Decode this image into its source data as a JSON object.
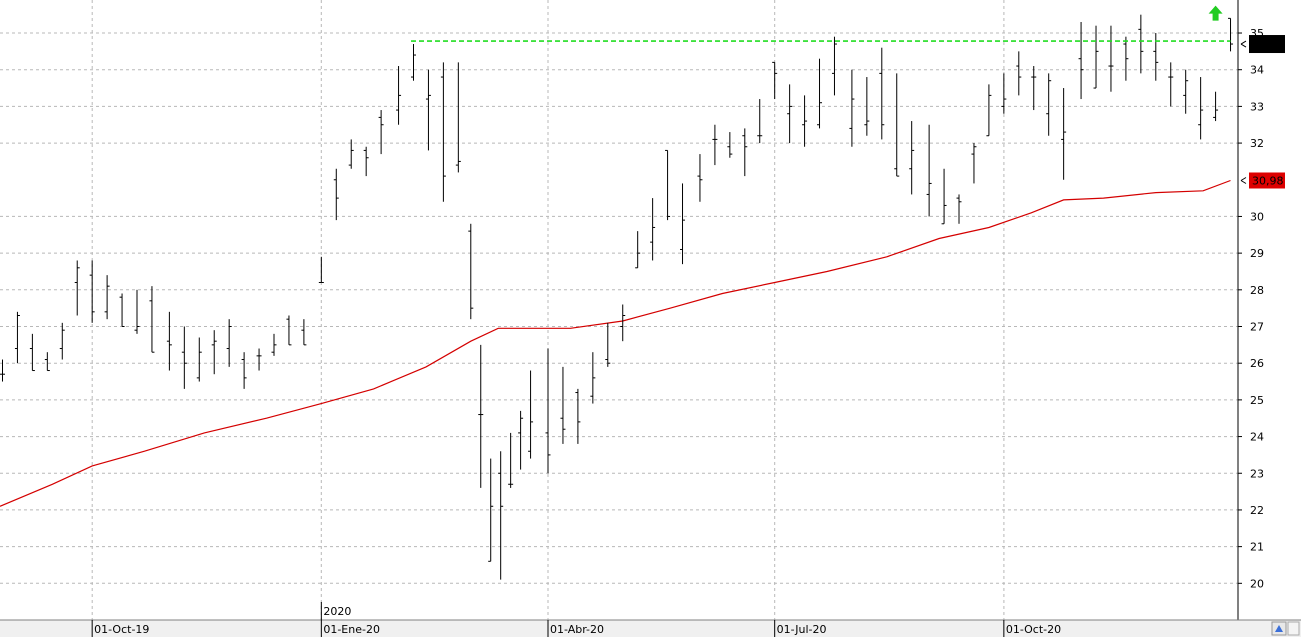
{
  "chart_data": {
    "type": "bar",
    "subtype": "ohlc-price-bars",
    "title": "",
    "xlabel": "",
    "ylabel": "",
    "ylim": [
      19.0,
      35.9
    ],
    "y_ticks": [
      20,
      21,
      22,
      23,
      24,
      25,
      26,
      27,
      28,
      29,
      30,
      32,
      33,
      34,
      35
    ],
    "y_tick_labels": [
      "20",
      "21",
      "22",
      "23",
      "24",
      "25",
      "26",
      "27",
      "28",
      "29",
      "30",
      "32",
      "33",
      "34",
      "35"
    ],
    "y_axis_position": "right",
    "x_axis": {
      "start_date": "2019-08-25",
      "date_ticks": [
        {
          "date": "2019-10-01",
          "label": "01-Oct-19"
        },
        {
          "date": "2020-01-01",
          "label": "01-Ene-20"
        },
        {
          "date": "2020-04-01",
          "label": "01-Abr-20"
        },
        {
          "date": "2020-07-01",
          "label": "01-Jul-20"
        },
        {
          "date": "2020-10-01",
          "label": "01-Oct-20"
        }
      ],
      "year_marker": {
        "date": "2020-01-01",
        "label": "2020"
      }
    },
    "grid": true,
    "series": [
      {
        "name": "",
        "kind": "price-bars",
        "color": "#000000",
        "x": [
          "2019-08-26",
          "2019-09-01",
          "2019-09-07",
          "2019-09-13",
          "2019-09-19",
          "2019-09-25",
          "2019-10-01",
          "2019-10-07",
          "2019-10-13",
          "2019-10-19",
          "2019-10-25",
          "2019-11-01",
          "2019-11-07",
          "2019-11-13",
          "2019-11-19",
          "2019-11-25",
          "2019-12-01",
          "2019-12-07",
          "2019-12-13",
          "2019-12-19",
          "2019-12-25",
          "2020-01-01",
          "2020-01-07",
          "2020-01-13",
          "2020-01-19",
          "2020-01-25",
          "2020-02-01",
          "2020-02-07",
          "2020-02-13",
          "2020-02-19",
          "2020-02-25",
          "2020-03-01",
          "2020-03-05",
          "2020-03-09",
          "2020-03-13",
          "2020-03-17",
          "2020-03-21",
          "2020-03-25",
          "2020-04-01",
          "2020-04-07",
          "2020-04-13",
          "2020-04-19",
          "2020-04-25",
          "2020-05-01",
          "2020-05-07",
          "2020-05-13",
          "2020-05-19",
          "2020-05-25",
          "2020-06-01",
          "2020-06-07",
          "2020-06-13",
          "2020-06-19",
          "2020-06-25",
          "2020-07-01",
          "2020-07-07",
          "2020-07-13",
          "2020-07-19",
          "2020-07-25",
          "2020-08-01",
          "2020-08-07",
          "2020-08-13",
          "2020-08-19",
          "2020-08-25",
          "2020-09-01",
          "2020-09-07",
          "2020-09-13",
          "2020-09-19",
          "2020-09-25",
          "2020-10-01",
          "2020-10-07",
          "2020-10-13",
          "2020-10-19",
          "2020-10-25",
          "2020-11-01",
          "2020-11-07",
          "2020-11-13",
          "2020-11-19",
          "2020-11-25",
          "2020-12-01",
          "2020-12-07",
          "2020-12-13",
          "2020-12-19",
          "2020-12-25",
          "2020-12-31"
        ],
        "high": [
          26.1,
          27.4,
          26.8,
          26.3,
          27.1,
          28.8,
          28.8,
          28.4,
          27.9,
          28.0,
          28.1,
          27.4,
          27.0,
          26.7,
          26.9,
          27.2,
          26.3,
          26.4,
          26.8,
          27.3,
          27.2,
          28.9,
          31.3,
          32.1,
          31.9,
          32.9,
          34.1,
          34.7,
          34.0,
          34.2,
          34.2,
          29.8,
          26.5,
          23.4,
          23.6,
          24.1,
          24.7,
          25.8,
          26.4,
          25.9,
          25.3,
          26.3,
          27.1,
          27.6,
          29.6,
          30.5,
          31.8,
          30.9,
          31.7,
          32.5,
          32.3,
          32.4,
          33.2,
          34.2,
          33.6,
          33.3,
          34.3,
          34.9,
          34.0,
          33.8,
          34.6,
          33.9,
          32.6,
          32.5,
          31.3,
          30.6,
          32.0,
          33.6,
          33.9,
          34.5,
          34.1,
          33.9,
          33.5,
          35.3,
          35.2,
          35.2,
          34.9,
          35.5,
          35.0,
          34.2,
          34.0,
          33.8,
          33.4,
          35.4
        ],
        "low": [
          25.5,
          26.0,
          25.8,
          25.8,
          26.1,
          27.3,
          27.1,
          27.2,
          27.0,
          26.8,
          26.3,
          25.8,
          25.3,
          25.5,
          25.7,
          25.9,
          25.3,
          25.8,
          26.2,
          26.5,
          26.5,
          28.2,
          29.9,
          31.3,
          31.1,
          31.7,
          32.5,
          33.7,
          31.8,
          30.4,
          31.2,
          27.2,
          22.6,
          20.6,
          20.1,
          22.6,
          23.1,
          23.4,
          23.0,
          23.8,
          23.8,
          24.9,
          25.9,
          26.6,
          28.6,
          28.8,
          29.9,
          28.7,
          30.4,
          31.4,
          31.6,
          31.1,
          32.0,
          33.2,
          32.0,
          31.9,
          32.4,
          33.3,
          31.9,
          32.2,
          32.1,
          31.1,
          30.6,
          30.0,
          29.8,
          29.8,
          30.9,
          32.2,
          32.8,
          33.3,
          32.9,
          32.2,
          31.0,
          33.2,
          33.5,
          33.4,
          33.7,
          33.9,
          33.7,
          33.0,
          32.8,
          32.1,
          32.6,
          34.5
        ],
        "open": [
          25.7,
          26.4,
          26.4,
          26.1,
          26.4,
          28.2,
          28.4,
          27.4,
          27.8,
          26.9,
          27.7,
          26.6,
          26.3,
          25.6,
          26.5,
          26.4,
          26.1,
          26.2,
          26.3,
          27.2,
          26.9,
          28.2,
          31.0,
          31.4,
          31.8,
          32.7,
          32.9,
          33.8,
          33.2,
          33.8,
          31.4,
          29.6,
          24.6,
          20.6,
          23.0,
          22.7,
          24.1,
          23.6,
          24.1,
          24.5,
          25.2,
          25.1,
          26.1,
          27.0,
          28.6,
          29.3,
          31.8,
          29.1,
          31.1,
          32.1,
          31.9,
          32.2,
          32.2,
          34.2,
          32.8,
          32.5,
          32.5,
          33.9,
          32.4,
          32.5,
          33.9,
          31.3,
          31.3,
          30.6,
          29.8,
          30.5,
          31.7,
          32.2,
          33.0,
          34.1,
          33.8,
          32.8,
          32.1,
          34.3,
          33.5,
          34.1,
          34.7,
          35.1,
          34.5,
          33.8,
          33.3,
          32.5,
          32.7,
          35.4
        ],
        "close": [
          25.7,
          27.3,
          25.8,
          25.8,
          26.9,
          28.6,
          27.4,
          28.1,
          27.0,
          27.0,
          26.3,
          26.5,
          26.0,
          26.3,
          26.6,
          27.0,
          25.6,
          26.2,
          26.5,
          26.5,
          26.5,
          28.2,
          30.5,
          31.8,
          31.6,
          32.5,
          33.3,
          34.4,
          33.3,
          31.1,
          31.5,
          27.5,
          24.6,
          22.1,
          22.1,
          22.7,
          24.5,
          24.4,
          23.5,
          24.2,
          24.4,
          25.6,
          26.0,
          27.3,
          29.0,
          29.7,
          30.0,
          29.9,
          31.0,
          32.1,
          31.7,
          31.9,
          32.2,
          33.9,
          33.0,
          32.6,
          33.1,
          34.7,
          33.2,
          32.6,
          32.5,
          31.1,
          31.8,
          30.9,
          30.3,
          30.4,
          31.9,
          33.3,
          33.2,
          33.8,
          33.8,
          33.7,
          32.3,
          34.0,
          34.5,
          34.1,
          34.3,
          34.5,
          34.2,
          33.8,
          33.7,
          32.9,
          32.9,
          34.7
        ]
      },
      {
        "name": "",
        "kind": "moving-average-line",
        "color": "#d40000",
        "x": [
          "2019-08-25",
          "2019-09-15",
          "2019-10-01",
          "2019-10-22",
          "2019-11-15",
          "2019-12-10",
          "2020-01-01",
          "2020-01-22",
          "2020-02-12",
          "2020-03-01",
          "2020-03-12",
          "2020-03-25",
          "2020-04-10",
          "2020-05-01",
          "2020-05-20",
          "2020-06-10",
          "2020-07-01",
          "2020-07-22",
          "2020-08-15",
          "2020-09-05",
          "2020-09-25",
          "2020-10-12",
          "2020-10-25",
          "2020-11-10",
          "2020-12-01",
          "2020-12-20",
          "2020-12-31"
        ],
        "y": [
          22.1,
          22.7,
          23.2,
          23.6,
          24.1,
          24.5,
          24.9,
          25.3,
          25.9,
          26.6,
          26.95,
          26.95,
          26.95,
          27.15,
          27.5,
          27.9,
          28.2,
          28.5,
          28.9,
          29.4,
          29.7,
          30.1,
          30.45,
          30.5,
          30.65,
          30.7,
          30.98
        ]
      },
      {
        "name": "",
        "kind": "resistance-line",
        "color": "#22dd22",
        "x": [
          "2020-02-06",
          "2020-12-31"
        ],
        "y": [
          34.78,
          34.78
        ]
      }
    ],
    "last_price": {
      "value": 34.7,
      "label": "",
      "color": "#000000"
    },
    "ma_last": {
      "value": 30.98,
      "label": "30,98",
      "color": "#dd0000"
    },
    "signal_arrow": {
      "direction": "up",
      "color": "#22cc22",
      "date": "2020-12-25",
      "value": 35.5
    }
  }
}
